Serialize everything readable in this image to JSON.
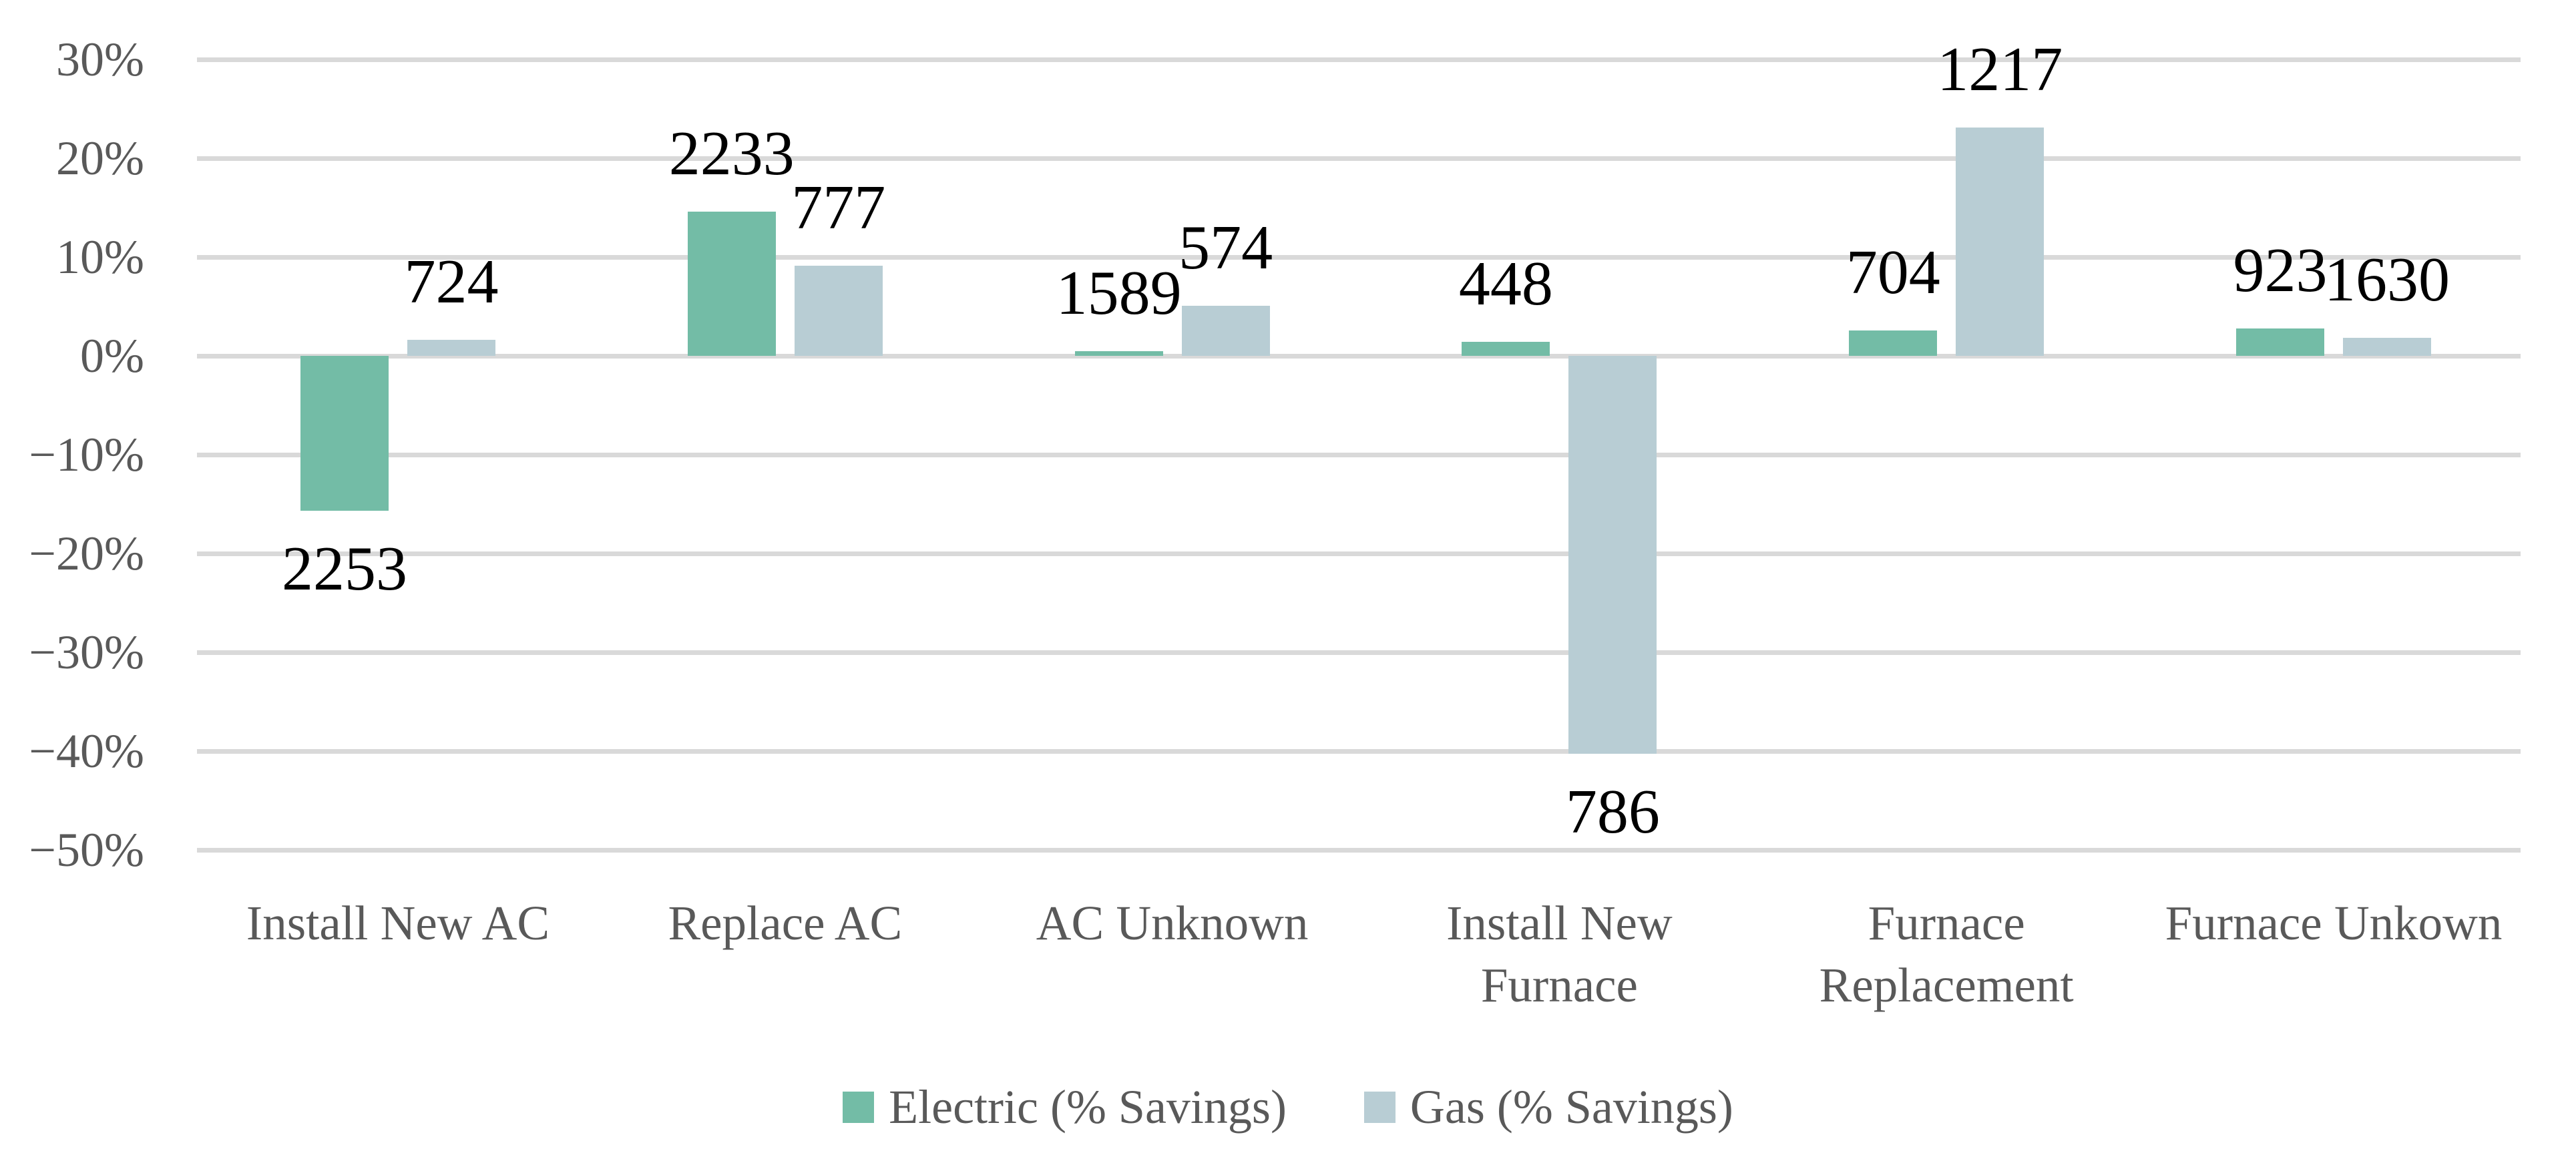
{
  "colors": {
    "electric": "#73bca6",
    "gas": "#b8cdd4",
    "gridline": "#d9d9d9",
    "axis_text": "#595959",
    "data_label": "#000000",
    "background": "#ffffff"
  },
  "chart_data": {
    "type": "bar",
    "title": "",
    "xlabel": "",
    "ylabel": "",
    "grid": true,
    "legend_position": "bottom",
    "categories": [
      "Install New AC",
      "Replace AC",
      "AC Unknown",
      "Install New Furnace",
      "Furnace Replacement",
      "Furnace Unkown"
    ],
    "category_lines": [
      [
        "Install New AC"
      ],
      [
        "Replace AC"
      ],
      [
        "AC Unknown"
      ],
      [
        "Install New",
        "Furnace"
      ],
      [
        "Furnace",
        "Replacement"
      ],
      [
        "Furnace Unkown"
      ]
    ],
    "series": [
      {
        "name": "Electric (% Savings)",
        "color_key": "electric",
        "values": [
          -15.7,
          14.6,
          0.5,
          1.4,
          2.6,
          2.8
        ],
        "point_labels": [
          "2253",
          "2233",
          "1589",
          "448",
          "704",
          "923"
        ]
      },
      {
        "name": "Gas (% Savings)",
        "color_key": "gas",
        "values": [
          1.6,
          9.1,
          5.1,
          -40.3,
          23.1,
          1.8
        ],
        "point_labels": [
          "724",
          "777",
          "574",
          "786",
          "1217",
          "1630"
        ]
      }
    ],
    "y_axis": {
      "min": -50,
      "max": 30,
      "tick_step": 10,
      "tick_labels": [
        "30%",
        "20%",
        "10%",
        "0%",
        "−10%",
        "−20%",
        "−30%",
        "−40%",
        "−50%"
      ],
      "tick_values": [
        30,
        20,
        10,
        0,
        -10,
        -20,
        -30,
        -40,
        -50
      ]
    }
  }
}
